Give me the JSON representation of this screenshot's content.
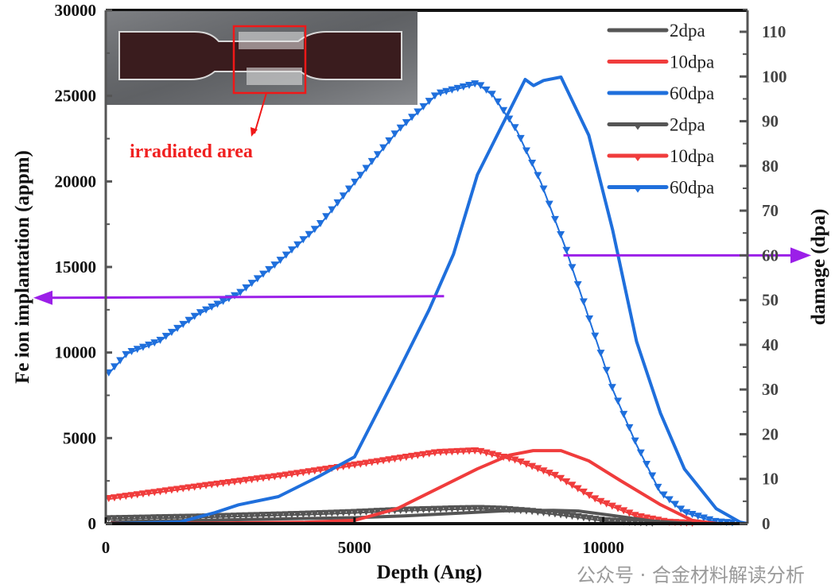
{
  "chart_data": {
    "type": "line",
    "title": "",
    "xlabel": "Depth (Ang)",
    "ylabel": "Fe ion implantation (appm)",
    "y2label": "damage (dpa)",
    "xlim": [
      0,
      12900
    ],
    "ylim": [
      0,
      30000
    ],
    "y2lim": [
      0,
      114.8
    ],
    "x_ticks": [
      0,
      5000,
      10000
    ],
    "y_ticks": [
      0,
      5000,
      10000,
      15000,
      20000,
      25000,
      30000
    ],
    "y2_ticks": [
      0,
      10,
      20,
      30,
      40,
      50,
      60,
      70,
      80,
      90,
      100,
      110
    ],
    "grid": false,
    "legend_position": "top-right",
    "colors": {
      "2dpa": "#555555",
      "10dpa": "#f03c3c",
      "60dpa": "#1f6fdc",
      "arrow": "#9b1fe8"
    },
    "series": [
      {
        "name": "2dpa",
        "axis": "left",
        "style": "line",
        "color": "#555555",
        "x": [
          100,
          2000,
          4000,
          5000,
          6000,
          7000,
          8000,
          9000,
          9500,
          10000,
          10500,
          11000,
          11500,
          12000
        ],
        "y": [
          100,
          200,
          300,
          350,
          450,
          600,
          750,
          780,
          740,
          550,
          350,
          150,
          50,
          0
        ]
      },
      {
        "name": "10dpa",
        "axis": "left",
        "style": "line",
        "color": "#f03c3c",
        "x": [
          100,
          2000,
          4000,
          5000,
          5860,
          6830,
          7470,
          8110,
          8590,
          9150,
          9710,
          10350,
          11150,
          11790,
          12300
        ],
        "y": [
          20,
          30,
          80,
          190,
          880,
          2280,
          3200,
          4000,
          4270,
          4270,
          3670,
          2510,
          1110,
          190,
          0
        ]
      },
      {
        "name": "60dpa",
        "axis": "left",
        "style": "line",
        "color": "#1f6fdc",
        "x": [
          100,
          1500,
          2200,
          2670,
          3470,
          4270,
          5000,
          5860,
          6500,
          6990,
          7470,
          7950,
          8430,
          8600,
          8800,
          9150,
          9710,
          10190,
          10670,
          11150,
          11630,
          12270,
          12750,
          12900
        ],
        "y": [
          0,
          100,
          650,
          1100,
          1580,
          2740,
          3900,
          8780,
          12500,
          15750,
          20390,
          23180,
          25960,
          25600,
          25900,
          26100,
          22700,
          17140,
          10640,
          6460,
          3200,
          880,
          90,
          0
        ]
      },
      {
        "name": "2dpa",
        "axis": "right",
        "style": "line-triangle",
        "color": "#555555",
        "x": [
          60,
          2000,
          4000,
          5000,
          6000,
          7000,
          7500,
          8000,
          8500,
          9000,
          9500,
          10000,
          10500,
          11000
        ],
        "y": [
          1.0,
          1.4,
          2.0,
          2.4,
          2.9,
          3.2,
          3.3,
          3.1,
          2.7,
          2.1,
          1.4,
          0.6,
          0.2,
          0
        ]
      },
      {
        "name": "10dpa",
        "axis": "right",
        "style": "line-triangle",
        "color": "#f03c3c",
        "x": [
          60,
          1870,
          3470,
          5060,
          6660,
          7470,
          8270,
          9070,
          9870,
          10670,
          11310,
          11800
        ],
        "y": [
          5.5,
          8.2,
          10.5,
          13.1,
          15.8,
          16.2,
          14.0,
          10.5,
          5.2,
          1.6,
          0.2,
          0
        ]
      },
      {
        "name": "60dpa",
        "axis": "right",
        "style": "line-triangle",
        "color": "#1f6fdc",
        "x": [
          60,
          430,
          1070,
          1870,
          2670,
          3470,
          4270,
          5060,
          5860,
          6660,
          7470,
          7790,
          8270,
          8750,
          9230,
          9710,
          10190,
          10670,
          11150,
          11630,
          12270,
          12700
        ],
        "y": [
          33.6,
          38.0,
          40.7,
          46.9,
          51.3,
          58.4,
          66.4,
          77.0,
          87.7,
          96.0,
          98.4,
          95.7,
          87.7,
          76.2,
          62.0,
          46.0,
          30.0,
          17.6,
          6.9,
          2.5,
          0.3,
          0
        ]
      }
    ],
    "legend": [
      "2dpa",
      "10dpa",
      "60dpa",
      "2dpa",
      "10dpa",
      "60dpa"
    ],
    "annotations": {
      "inset_label": "irradiated area",
      "left_arrow": {
        "points_to": "left axis",
        "from_depth": 6800,
        "level_appm": 13200
      },
      "right_arrow": {
        "points_to": "right axis",
        "from_depth": 9200,
        "level_dpa": 60
      }
    }
  },
  "watermark": "公众号 · 合金材料解读分析"
}
